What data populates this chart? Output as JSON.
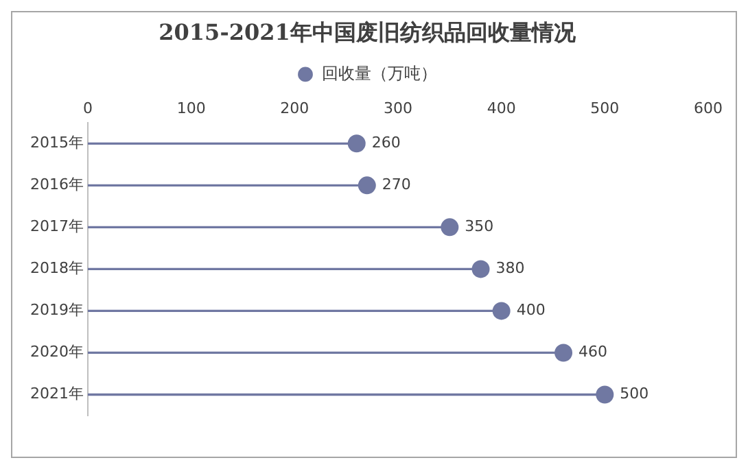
{
  "chart_data": {
    "type": "lollipop",
    "title": "2015-2021年中国废旧纺织品回收量情况",
    "orientation": "horizontal",
    "categories": [
      "2015年",
      "2016年",
      "2017年",
      "2018年",
      "2019年",
      "2020年",
      "2021年"
    ],
    "series": [
      {
        "name": "回收量（万吨）",
        "color": "#7078a2",
        "values": [
          260,
          270,
          350,
          380,
          400,
          460,
          500
        ]
      }
    ],
    "xlim": [
      0,
      600
    ],
    "xticks": [
      0,
      100,
      200,
      300,
      400,
      500,
      600
    ],
    "grid": false,
    "legend": "top",
    "marker": "circle",
    "data_labels": true
  }
}
